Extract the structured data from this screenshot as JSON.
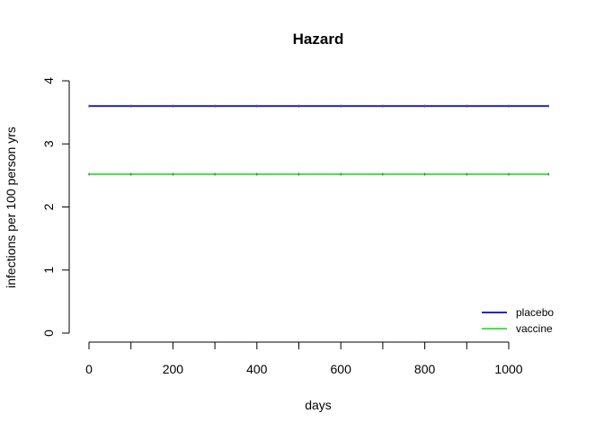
{
  "chart_data": {
    "type": "line",
    "title": "Hazard",
    "xlabel": "days",
    "ylabel": "infections per 100 person yrs",
    "xlim": [
      0,
      1095
    ],
    "ylim": [
      0,
      4
    ],
    "xticks": [
      0,
      200,
      400,
      600,
      800,
      1000
    ],
    "yticks": [
      0,
      1,
      2,
      3,
      4
    ],
    "xticks_minor": [
      100,
      300,
      500,
      700,
      900
    ],
    "grid": false,
    "legend_position": "bottom-right",
    "series": [
      {
        "name": "placebo",
        "color": "#2323e0",
        "x": [
          0,
          100,
          200,
          300,
          400,
          500,
          600,
          700,
          800,
          900,
          1000,
          1095
        ],
        "values": [
          3.6,
          3.6,
          3.6,
          3.6,
          3.6,
          3.6,
          3.6,
          3.6,
          3.6,
          3.6,
          3.6,
          3.6
        ]
      },
      {
        "name": "vaccine",
        "color": "#44e844",
        "x": [
          0,
          100,
          200,
          300,
          400,
          500,
          600,
          700,
          800,
          900,
          1000,
          1095
        ],
        "values": [
          2.52,
          2.52,
          2.52,
          2.52,
          2.52,
          2.52,
          2.52,
          2.52,
          2.52,
          2.52,
          2.52,
          2.52
        ]
      }
    ]
  }
}
